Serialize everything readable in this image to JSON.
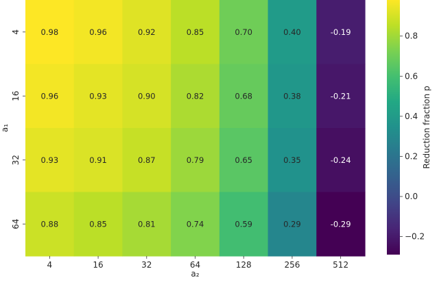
{
  "chart_data": {
    "type": "heatmap",
    "title": "",
    "xlabel": "a₂",
    "ylabel": "a₁",
    "x_categories": [
      "4",
      "16",
      "32",
      "64",
      "128",
      "256",
      "512"
    ],
    "y_categories": [
      "4",
      "16",
      "32",
      "64"
    ],
    "values": [
      [
        0.98,
        0.96,
        0.92,
        0.85,
        0.7,
        0.4,
        -0.19
      ],
      [
        0.96,
        0.93,
        0.9,
        0.82,
        0.68,
        0.38,
        -0.21
      ],
      [
        0.93,
        0.91,
        0.87,
        0.79,
        0.65,
        0.35,
        -0.24
      ],
      [
        0.88,
        0.85,
        0.81,
        0.74,
        0.59,
        0.29,
        -0.29
      ]
    ],
    "cell_labels": [
      [
        "0.98",
        "0.96",
        "0.92",
        "0.85",
        "0.70",
        "0.40",
        "-0.19"
      ],
      [
        "0.96",
        "0.93",
        "0.90",
        "0.82",
        "0.68",
        "0.38",
        "-0.21"
      ],
      [
        "0.93",
        "0.91",
        "0.87",
        "0.79",
        "0.65",
        "0.35",
        "-0.24"
      ],
      [
        "0.88",
        "0.85",
        "0.81",
        "0.74",
        "0.59",
        "0.29",
        "-0.29"
      ]
    ],
    "colormap": "viridis",
    "vmin": -0.29,
    "vmax": 0.98,
    "colorbar": {
      "label": "Reduction fraction p",
      "ticks": [
        -0.2,
        0.0,
        0.2,
        0.4,
        0.6,
        0.8
      ],
      "tick_labels": [
        "−0.2",
        "0.0",
        "0.2",
        "0.4",
        "0.6",
        "0.8"
      ]
    },
    "grid": false,
    "legend": "colorbar-right"
  }
}
